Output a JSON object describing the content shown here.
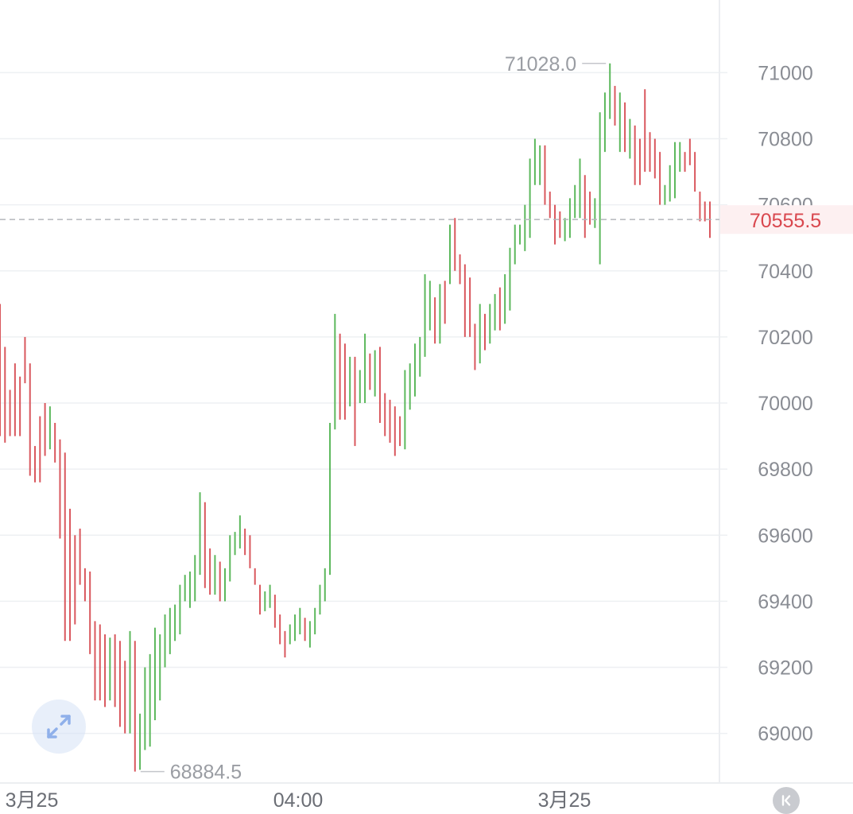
{
  "chart_data": {
    "type": "ohlc",
    "y_ticks": [
      "71000",
      "70800",
      "70600",
      "70400",
      "70200",
      "70000",
      "69800",
      "69600",
      "69400",
      "69200",
      "69000"
    ],
    "ylim": [
      68850,
      71220
    ],
    "x_ticks": [
      "3月25",
      "04:00",
      "3月25"
    ],
    "high_label": "71028.0",
    "low_label": "68884.5",
    "current_price": 70555.5,
    "current_price_label": "70555.5",
    "up_color": "#5cb85c",
    "down_color": "#d9575d",
    "bars": [
      [
        69900,
        70240,
        69740,
        70300
      ],
      [
        70170,
        70150,
        69880,
        69880
      ],
      [
        70040,
        69970,
        69940,
        69900
      ],
      [
        70120,
        70000,
        69980,
        69900
      ],
      [
        70080,
        70080,
        69970,
        69900
      ],
      [
        70200,
        70160,
        70040,
        70060
      ],
      [
        70120,
        70050,
        69820,
        69780
      ],
      [
        69870,
        69860,
        69790,
        69760
      ],
      [
        69960,
        69920,
        69840,
        69760
      ],
      [
        70000,
        69920,
        69880,
        69840
      ],
      [
        69990,
        69900,
        69960,
        69860
      ],
      [
        69940,
        69930,
        69840,
        69820
      ],
      [
        69890,
        69860,
        69620,
        69590
      ],
      [
        69850,
        69660,
        69300,
        69280
      ],
      [
        69680,
        69520,
        69300,
        69280
      ],
      [
        69600,
        69500,
        69400,
        69330
      ],
      [
        69620,
        69550,
        69480,
        69450
      ],
      [
        69500,
        69480,
        69380,
        69400
      ],
      [
        69490,
        69460,
        69240,
        69240
      ],
      [
        69340,
        69280,
        69200,
        69100
      ],
      [
        69330,
        69280,
        69120,
        69100
      ],
      [
        69300,
        69150,
        69100,
        69080
      ],
      [
        69290,
        69120,
        69170,
        69100
      ],
      [
        69300,
        69230,
        69110,
        69080
      ],
      [
        69280,
        69210,
        69080,
        69020
      ],
      [
        69220,
        69100,
        69060,
        69000
      ],
      [
        69310,
        69020,
        69200,
        69000
      ],
      [
        69280,
        69150,
        68900,
        68884.5
      ],
      [
        69060,
        68930,
        69020,
        68890
      ],
      [
        69200,
        68950,
        69120,
        68950
      ],
      [
        69240,
        69040,
        69180,
        68960
      ],
      [
        69320,
        69140,
        69220,
        69040
      ],
      [
        69300,
        69200,
        69260,
        69100
      ],
      [
        69360,
        69240,
        69300,
        69200
      ],
      [
        69380,
        69260,
        69320,
        69240
      ],
      [
        69390,
        69260,
        69350,
        69280
      ],
      [
        69450,
        69300,
        69400,
        69300
      ],
      [
        69480,
        69350,
        69430,
        69400
      ],
      [
        69490,
        69380,
        69450,
        69380
      ],
      [
        69540,
        69400,
        69500,
        69400
      ],
      [
        69730,
        69500,
        69680,
        69480
      ],
      [
        69700,
        69650,
        69440,
        69440
      ],
      [
        69560,
        69480,
        69450,
        69420
      ],
      [
        69540,
        69440,
        69480,
        69420
      ],
      [
        69520,
        69500,
        69410,
        69400
      ],
      [
        69500,
        69400,
        69450,
        69400
      ],
      [
        69600,
        69450,
        69560,
        69460
      ],
      [
        69610,
        69560,
        69580,
        69540
      ],
      [
        69660,
        69560,
        69620,
        69560
      ],
      [
        69620,
        69610,
        69540,
        69540
      ],
      [
        69600,
        69550,
        69510,
        69500
      ],
      [
        69500,
        69520,
        69450,
        69450
      ],
      [
        69450,
        69450,
        69360,
        69360
      ],
      [
        69430,
        69380,
        69420,
        69370
      ],
      [
        69450,
        69400,
        69430,
        69380
      ],
      [
        69420,
        69400,
        69340,
        69320
      ],
      [
        69360,
        69340,
        69280,
        69270
      ],
      [
        69310,
        69290,
        69240,
        69230
      ],
      [
        69330,
        69270,
        69300,
        69270
      ],
      [
        69360,
        69300,
        69340,
        69280
      ],
      [
        69380,
        69320,
        69360,
        69300
      ],
      [
        69350,
        69340,
        69300,
        69280
      ],
      [
        69340,
        69300,
        69320,
        69260
      ],
      [
        69380,
        69320,
        69360,
        69300
      ],
      [
        69450,
        69370,
        69420,
        69360
      ],
      [
        69500,
        69420,
        69460,
        69400
      ],
      [
        69940,
        69480,
        69920,
        69480
      ],
      [
        70270,
        69940,
        70220,
        69920
      ],
      [
        70210,
        70200,
        70060,
        69950
      ],
      [
        70180,
        70150,
        70080,
        69950
      ],
      [
        70140,
        70020,
        70100,
        69990
      ],
      [
        70140,
        70080,
        70050,
        69870
      ],
      [
        70100,
        70060,
        70080,
        70000
      ],
      [
        70210,
        70080,
        70180,
        70000
      ],
      [
        70150,
        70100,
        70060,
        70040
      ],
      [
        70160,
        70060,
        70120,
        70020
      ],
      [
        70170,
        70120,
        70060,
        69940
      ],
      [
        70030,
        70020,
        69960,
        69900
      ],
      [
        70010,
        69960,
        69900,
        69880
      ],
      [
        69990,
        69940,
        69860,
        69840
      ],
      [
        69960,
        69880,
        69870,
        69870
      ],
      [
        70100,
        69880,
        70060,
        69860
      ],
      [
        70120,
        70000,
        70080,
        69980
      ],
      [
        70180,
        70040,
        70140,
        70020
      ],
      [
        70200,
        70100,
        70160,
        70080
      ],
      [
        70390,
        70160,
        70360,
        70140
      ],
      [
        70370,
        70260,
        70300,
        70220
      ],
      [
        70320,
        70300,
        70180,
        70180
      ],
      [
        70360,
        70200,
        70320,
        70180
      ],
      [
        70370,
        70280,
        70250,
        70240
      ],
      [
        70540,
        70360,
        70510,
        70360
      ],
      [
        70560,
        70480,
        70420,
        70400
      ],
      [
        70450,
        70420,
        70380,
        70360
      ],
      [
        70420,
        70380,
        70280,
        70200
      ],
      [
        70380,
        70260,
        70220,
        70200
      ],
      [
        70240,
        70220,
        70130,
        70100
      ],
      [
        70300,
        70150,
        70270,
        70120
      ],
      [
        70270,
        70240,
        70200,
        70160
      ],
      [
        70300,
        70200,
        70260,
        70180
      ],
      [
        70330,
        70260,
        70300,
        70220
      ],
      [
        70350,
        70300,
        70250,
        70220
      ],
      [
        70390,
        70260,
        70340,
        70240
      ],
      [
        70470,
        70340,
        70430,
        70280
      ],
      [
        70540,
        70420,
        70500,
        70420
      ],
      [
        70540,
        70470,
        70480,
        70480
      ],
      [
        70600,
        70480,
        70560,
        70460
      ],
      [
        70740,
        70560,
        70700,
        70500
      ],
      [
        70800,
        70690,
        70740,
        70660
      ],
      [
        70780,
        70680,
        70770,
        70660
      ],
      [
        70780,
        70740,
        70640,
        70600
      ],
      [
        70640,
        70600,
        70560,
        70560
      ],
      [
        70600,
        70560,
        70500,
        70480
      ],
      [
        70580,
        70520,
        70500,
        70500
      ],
      [
        70560,
        70520,
        70540,
        70490
      ],
      [
        70620,
        70540,
        70580,
        70500
      ],
      [
        70660,
        70560,
        70620,
        70560
      ],
      [
        70740,
        70600,
        70700,
        70560
      ],
      [
        70690,
        70660,
        70580,
        70500
      ],
      [
        70640,
        70600,
        70540,
        70540
      ],
      [
        70620,
        70540,
        70590,
        70530
      ],
      [
        70880,
        70600,
        70840,
        70420
      ],
      [
        70940,
        70760,
        70900,
        70760
      ],
      [
        71028,
        70900,
        70920,
        70860
      ],
      [
        70960,
        70880,
        70860,
        70840
      ],
      [
        70940,
        70860,
        70880,
        70760
      ],
      [
        70910,
        70840,
        70760,
        70760
      ],
      [
        70860,
        70780,
        70820,
        70740
      ],
      [
        70840,
        70800,
        70720,
        70660
      ],
      [
        70800,
        70720,
        70660,
        70660
      ],
      [
        70950,
        70840,
        70760,
        70700
      ],
      [
        70820,
        70760,
        70720,
        70700
      ],
      [
        70800,
        70720,
        70690,
        70680
      ],
      [
        70760,
        70700,
        70620,
        70600
      ],
      [
        70660,
        70620,
        70660,
        70600
      ],
      [
        70720,
        70620,
        70700,
        70610
      ],
      [
        70790,
        70700,
        70760,
        70620
      ],
      [
        70790,
        70720,
        70760,
        70700
      ],
      [
        70760,
        70740,
        70700,
        70700
      ],
      [
        70800,
        70760,
        70740,
        70720
      ],
      [
        70760,
        70720,
        70660,
        70640
      ],
      [
        70640,
        70610,
        70560,
        70550
      ],
      [
        70610,
        70580,
        70570,
        70550
      ],
      [
        70610,
        70580,
        70555.5,
        70500
      ]
    ]
  },
  "buttons": {
    "expand_icon": "expand-diagonal-arrows-icon",
    "rewind_icon": "rewind-to-start-icon"
  }
}
